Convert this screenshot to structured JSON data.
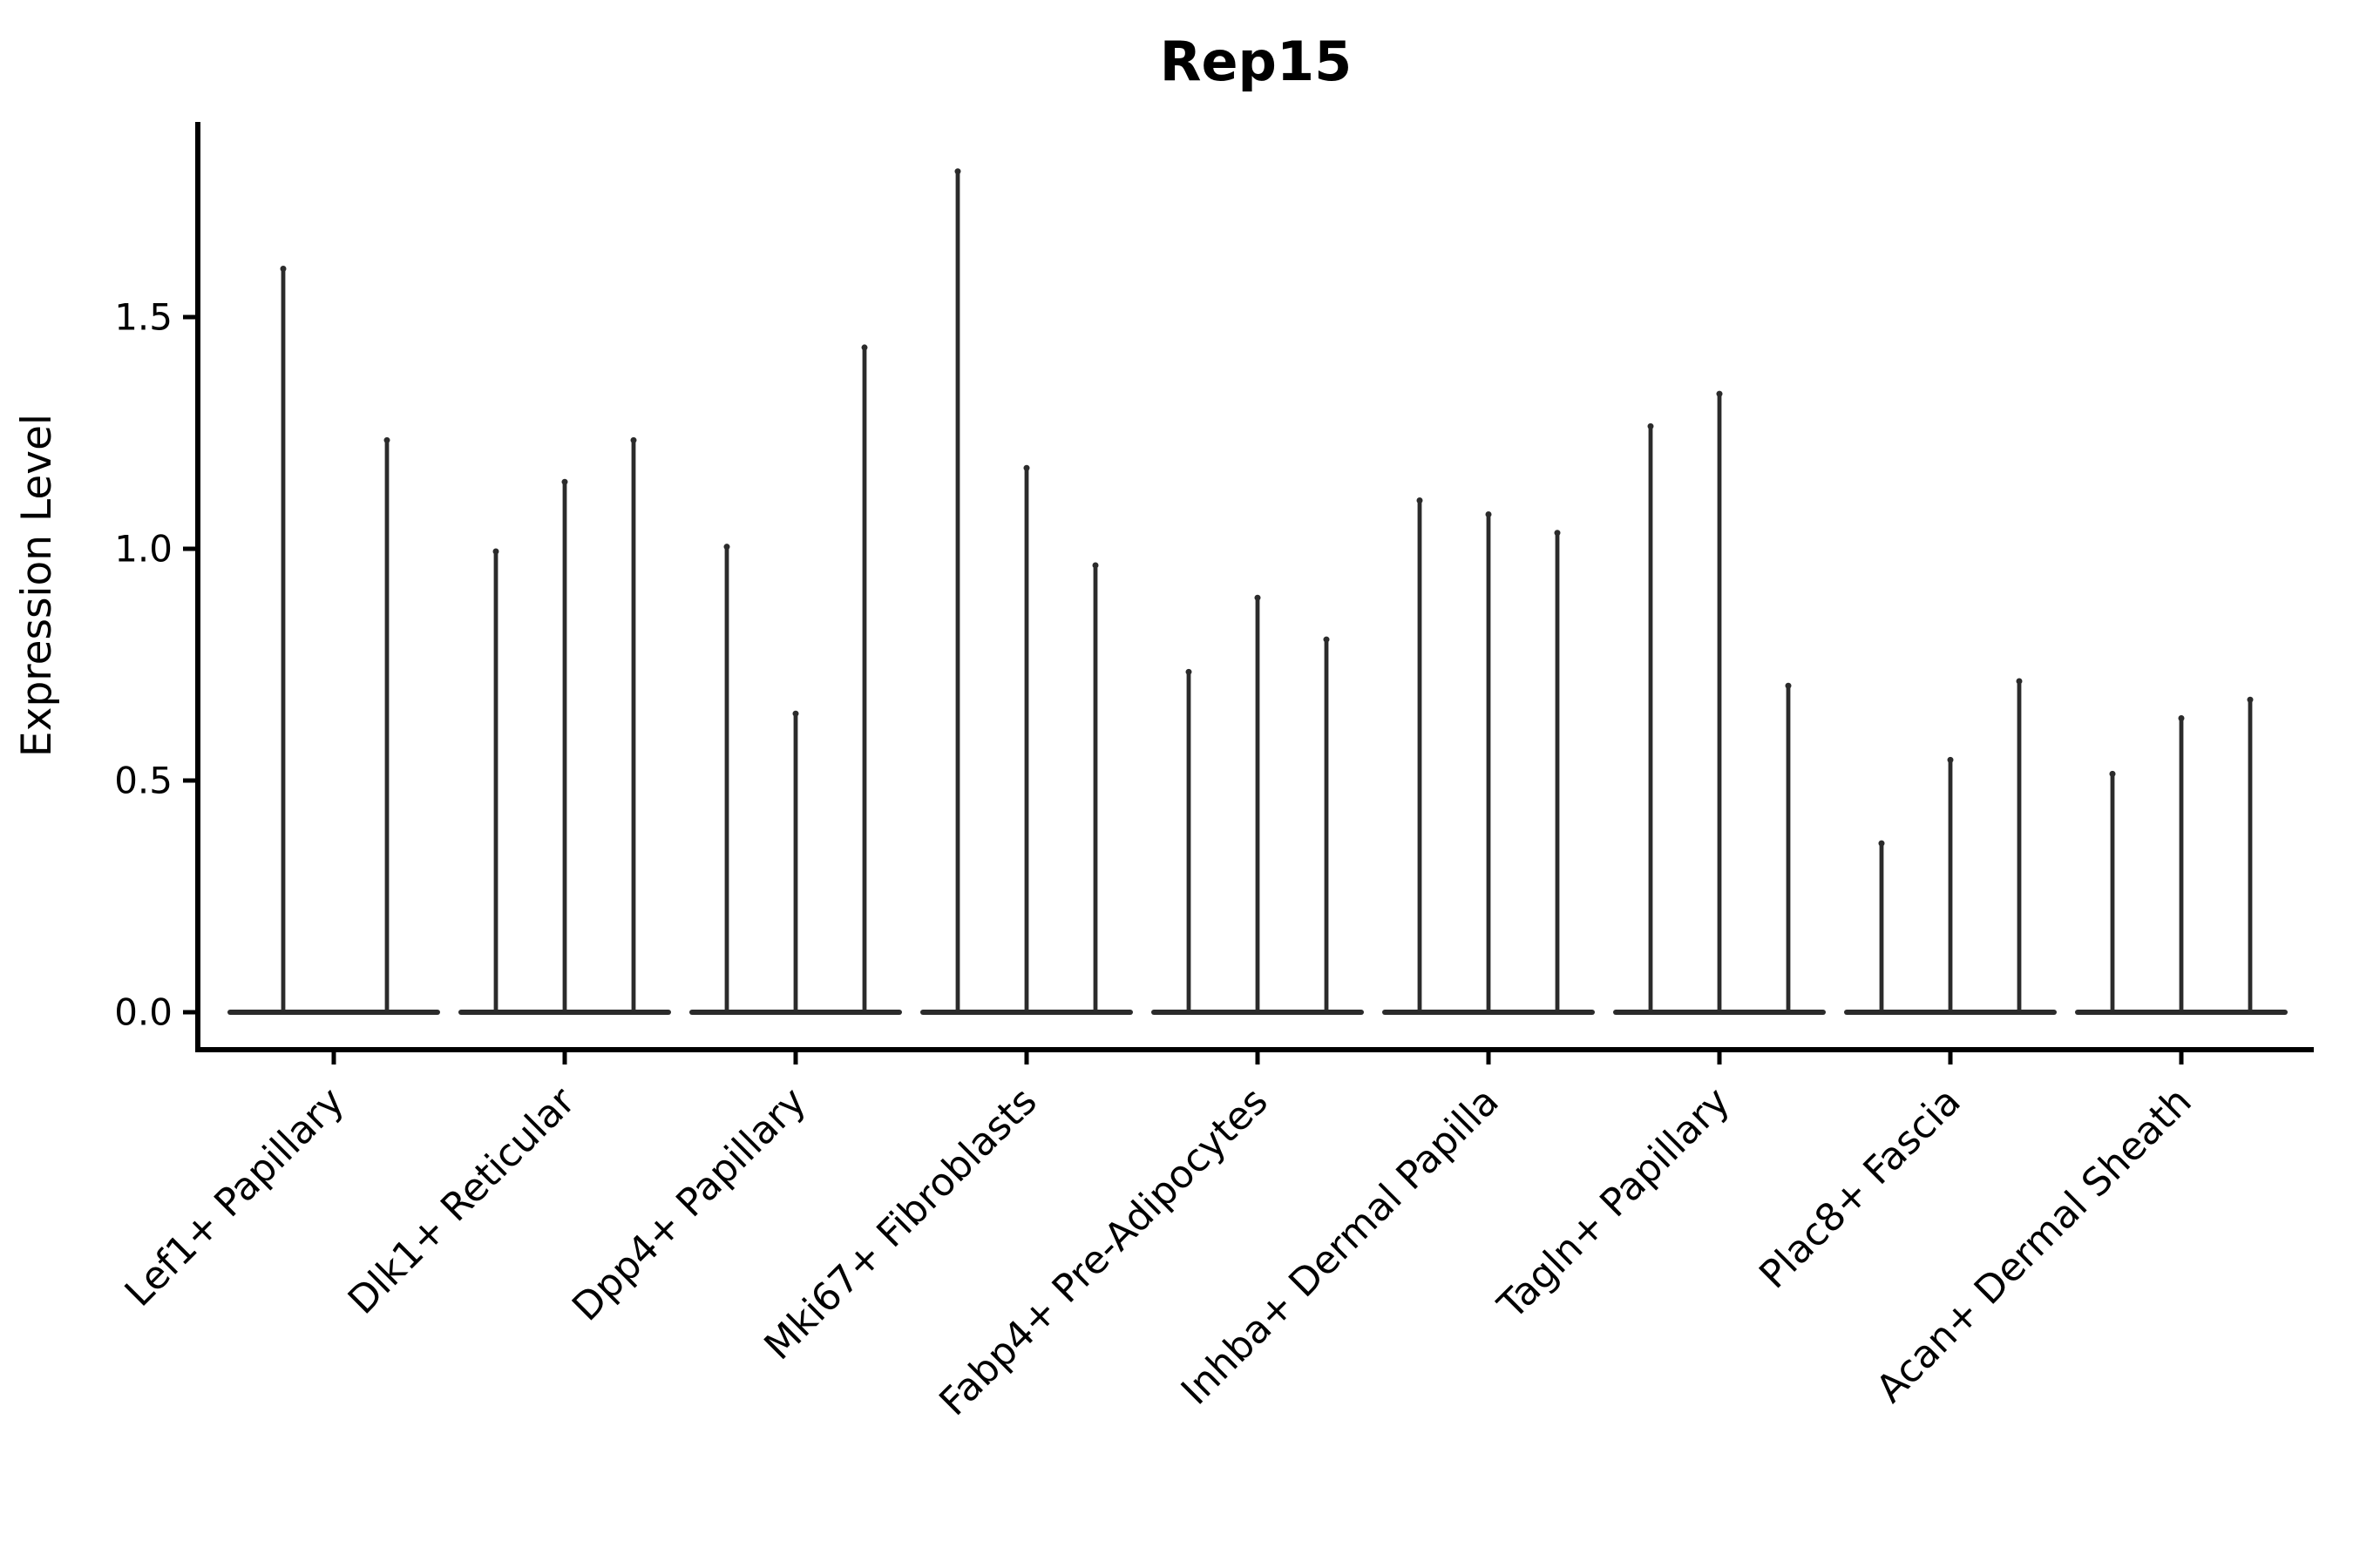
{
  "figure": {
    "background_color": "#ffffff",
    "text_color": "#000000",
    "violin_color": "#2b2b2b",
    "axis_color": "#000000"
  },
  "chart_data": {
    "type": "violin",
    "title": "Rep15",
    "xlabel": "",
    "ylabel": "Expression Level",
    "grid": false,
    "legend": null,
    "ylim": [
      -0.08,
      1.92
    ],
    "yticks": [
      0.0,
      0.5,
      1.0,
      1.5
    ],
    "ytick_labels": [
      "0.0",
      "0.5",
      "1.0",
      "1.5"
    ],
    "categories": [
      "Lef1+ Papillary",
      "Dlk1+ Reticular",
      "Dpp4+ Papillary",
      "Mki67+ Fibroblasts",
      "Fabp4+ Pre-Adipocytes",
      "Inhba+ Dermal Papilla",
      "Tagln+ Papillary",
      "Plac8+ Fascia",
      "Acan+ Dermal Sheath"
    ],
    "x_tick_rotation_deg": 45,
    "violin_shape_note": "each violin is a near-zero-width spike with a flat base at expression 0",
    "series_per_category": [
      {
        "category": "Lef1+ Papillary",
        "violin_min": 0,
        "violin_max": [
          1.61,
          1.24
        ]
      },
      {
        "category": "Dlk1+ Reticular",
        "violin_min": 0,
        "violin_max": [
          1.0,
          1.15,
          1.24
        ]
      },
      {
        "category": "Dpp4+ Papillary",
        "violin_min": 0,
        "violin_max": [
          1.01,
          0.65,
          1.44
        ]
      },
      {
        "category": "Mki67+ Fibroblasts",
        "violin_min": 0,
        "violin_max": [
          1.82,
          1.18,
          0.97
        ]
      },
      {
        "category": "Fabp4+ Pre-Adipocytes",
        "violin_min": 0,
        "violin_max": [
          0.74,
          0.9,
          0.81
        ]
      },
      {
        "category": "Inhba+ Dermal Papilla",
        "violin_min": 0,
        "violin_max": [
          1.11,
          1.08,
          1.04
        ]
      },
      {
        "category": "Tagln+ Papillary",
        "violin_min": 0,
        "violin_max": [
          1.27,
          1.34,
          0.71
        ]
      },
      {
        "category": "Plac8+ Fascia",
        "violin_min": 0,
        "violin_max": [
          0.37,
          0.55,
          0.72
        ]
      },
      {
        "category": "Acan+ Dermal Sheath",
        "violin_min": 0,
        "violin_max": [
          0.52,
          0.64,
          0.68
        ]
      }
    ]
  }
}
